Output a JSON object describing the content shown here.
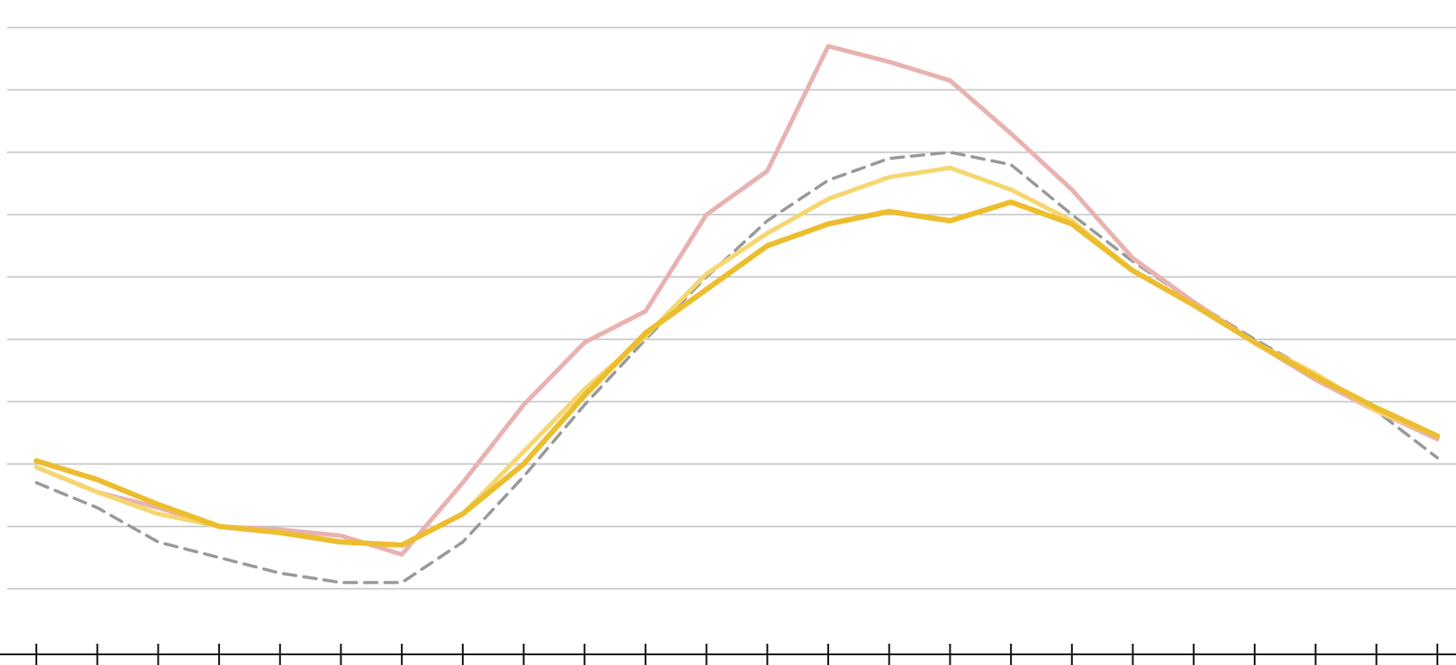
{
  "chart_data": {
    "type": "line",
    "x": [
      0,
      1,
      2,
      3,
      4,
      5,
      6,
      7,
      8,
      9,
      10,
      11,
      12,
      13,
      14,
      15,
      16,
      17,
      18,
      19,
      20,
      21,
      22,
      23
    ],
    "ylim": [
      0,
      9
    ],
    "y_gridlines": [
      0,
      1,
      2,
      3,
      4,
      5,
      6,
      7,
      8,
      9
    ],
    "grid": "horizontal",
    "series": [
      {
        "key": "dashed-gray",
        "color": "#999999",
        "dashed": true,
        "values": [
          1.7,
          1.3,
          0.75,
          0.5,
          0.25,
          0.1,
          0.1,
          0.75,
          1.8,
          2.95,
          4.0,
          5.0,
          5.9,
          6.55,
          6.9,
          7.0,
          6.8,
          6.0,
          5.25,
          4.6,
          4.0,
          3.45,
          2.85,
          2.1
        ]
      },
      {
        "key": "pink",
        "color": "#e8b2b0",
        "dashed": false,
        "values": [
          1.95,
          1.55,
          1.3,
          1.0,
          0.95,
          0.85,
          0.55,
          1.7,
          2.95,
          3.95,
          4.45,
          6.0,
          6.7,
          8.7,
          8.45,
          8.15,
          7.3,
          6.4,
          5.3,
          4.6,
          3.95,
          3.35,
          2.85,
          2.4
        ]
      },
      {
        "key": "light-yellow",
        "color": "#f6d66f",
        "dashed": false,
        "values": [
          1.95,
          1.55,
          1.2,
          1.0,
          0.9,
          0.75,
          0.7,
          1.2,
          2.2,
          3.2,
          4.05,
          5.05,
          5.7,
          6.25,
          6.6,
          6.75,
          6.4,
          5.9,
          5.1,
          4.55,
          3.95,
          3.45,
          2.85,
          2.45
        ]
      },
      {
        "key": "gold",
        "color": "#ecbd2e",
        "dashed": false,
        "values": [
          2.05,
          1.75,
          1.35,
          1.0,
          0.9,
          0.75,
          0.7,
          1.2,
          2.0,
          3.1,
          4.1,
          4.8,
          5.5,
          5.85,
          6.05,
          5.9,
          6.2,
          5.85,
          5.1,
          4.55,
          3.95,
          3.4,
          2.9,
          2.45
        ]
      }
    ]
  }
}
